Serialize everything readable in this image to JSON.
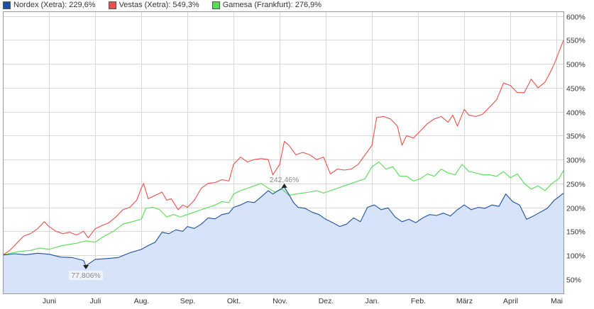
{
  "legend": {
    "items": [
      {
        "label": "Nordex (Xetra): 229,6%",
        "color": "#1f4fa0",
        "name": "nordex"
      },
      {
        "label": "Vestas (Xetra): 549,3%",
        "color": "#e8504a",
        "name": "vestas"
      },
      {
        "label": "Gamesa (Frankfurt): 276,9%",
        "color": "#55dd55",
        "name": "gamesa"
      }
    ]
  },
  "annotations": {
    "high_label": "242,46%",
    "low_label": "77,806%"
  },
  "colors": {
    "nordex_line": "#1f4fa0",
    "nordex_fill": "#d6e3f8",
    "vestas_line": "#e8504a",
    "gamesa_line": "#55dd55",
    "grid": "#d8d8d8",
    "frame": "#999999"
  },
  "chart_data": {
    "type": "line",
    "title": "",
    "xlabel": "",
    "ylabel": "",
    "ylim": [
      20,
      610
    ],
    "y_ticks": [
      50,
      100,
      150,
      200,
      250,
      300,
      350,
      400,
      450,
      500,
      550,
      600
    ],
    "y_tick_labels": [
      "50%",
      "100%",
      "150%",
      "200%",
      "250%",
      "300%",
      "350%",
      "400%",
      "450%",
      "500%",
      "550%",
      "600%"
    ],
    "x_range": [
      0,
      12.15
    ],
    "x_ticks": [
      1,
      2,
      3,
      4,
      5,
      6,
      7,
      8,
      9,
      10,
      11,
      12
    ],
    "x_tick_labels": [
      "Juni",
      "Juli",
      "Aug.",
      "Sep.",
      "Okt.",
      "Nov.",
      "Dez.",
      "Jan.",
      "Feb.",
      "März",
      "April",
      "Mai"
    ],
    "grid": true,
    "legend_position": "top",
    "series": [
      {
        "name": "Nordex (Xetra): 229,6%",
        "area": true,
        "points": [
          [
            0.0,
            100
          ],
          [
            0.25,
            103
          ],
          [
            0.5,
            101
          ],
          [
            0.75,
            104
          ],
          [
            1.0,
            102
          ],
          [
            1.25,
            96
          ],
          [
            1.5,
            95
          ],
          [
            1.75,
            89
          ],
          [
            1.8,
            77.8
          ],
          [
            2.0,
            91
          ],
          [
            2.25,
            93
          ],
          [
            2.5,
            95
          ],
          [
            2.75,
            105
          ],
          [
            3.0,
            112
          ],
          [
            3.15,
            120
          ],
          [
            3.3,
            127
          ],
          [
            3.45,
            148
          ],
          [
            3.6,
            145
          ],
          [
            3.75,
            153
          ],
          [
            3.9,
            150
          ],
          [
            4.0,
            160
          ],
          [
            4.15,
            156
          ],
          [
            4.3,
            165
          ],
          [
            4.45,
            178
          ],
          [
            4.6,
            176
          ],
          [
            4.75,
            185
          ],
          [
            4.9,
            188
          ],
          [
            5.0,
            200
          ],
          [
            5.15,
            205
          ],
          [
            5.3,
            212
          ],
          [
            5.45,
            210
          ],
          [
            5.6,
            222
          ],
          [
            5.75,
            235
          ],
          [
            5.85,
            228
          ],
          [
            6.0,
            237
          ],
          [
            6.1,
            242.5
          ],
          [
            6.2,
            227
          ],
          [
            6.3,
            210
          ],
          [
            6.4,
            200
          ],
          [
            6.55,
            198
          ],
          [
            6.7,
            190
          ],
          [
            6.85,
            185
          ],
          [
            7.0,
            175
          ],
          [
            7.15,
            168
          ],
          [
            7.3,
            160
          ],
          [
            7.45,
            165
          ],
          [
            7.6,
            178
          ],
          [
            7.75,
            170
          ],
          [
            7.9,
            200
          ],
          [
            8.05,
            205
          ],
          [
            8.2,
            195
          ],
          [
            8.35,
            199
          ],
          [
            8.5,
            180
          ],
          [
            8.65,
            170
          ],
          [
            8.8,
            175
          ],
          [
            8.95,
            168
          ],
          [
            9.1,
            178
          ],
          [
            9.25,
            185
          ],
          [
            9.4,
            183
          ],
          [
            9.55,
            188
          ],
          [
            9.7,
            182
          ],
          [
            9.85,
            195
          ],
          [
            10.0,
            205
          ],
          [
            10.15,
            195
          ],
          [
            10.3,
            200
          ],
          [
            10.45,
            198
          ],
          [
            10.6,
            205
          ],
          [
            10.75,
            202
          ],
          [
            10.9,
            228
          ],
          [
            11.05,
            212
          ],
          [
            11.2,
            205
          ],
          [
            11.35,
            175
          ],
          [
            11.5,
            182
          ],
          [
            11.65,
            190
          ],
          [
            11.8,
            198
          ],
          [
            11.95,
            215
          ],
          [
            12.05,
            222
          ],
          [
            12.15,
            229.6
          ]
        ]
      },
      {
        "name": "Vestas (Xetra): 549,3%",
        "area": false,
        "points": [
          [
            0.0,
            100
          ],
          [
            0.15,
            110
          ],
          [
            0.3,
            125
          ],
          [
            0.45,
            140
          ],
          [
            0.6,
            145
          ],
          [
            0.75,
            155
          ],
          [
            0.9,
            170
          ],
          [
            1.0,
            160
          ],
          [
            1.15,
            150
          ],
          [
            1.3,
            145
          ],
          [
            1.45,
            148
          ],
          [
            1.6,
            142
          ],
          [
            1.75,
            150
          ],
          [
            1.85,
            136
          ],
          [
            2.0,
            155
          ],
          [
            2.15,
            162
          ],
          [
            2.3,
            168
          ],
          [
            2.45,
            180
          ],
          [
            2.6,
            195
          ],
          [
            2.75,
            200
          ],
          [
            2.9,
            215
          ],
          [
            3.0,
            240
          ],
          [
            3.05,
            250
          ],
          [
            3.15,
            218
          ],
          [
            3.3,
            225
          ],
          [
            3.45,
            232
          ],
          [
            3.55,
            215
          ],
          [
            3.65,
            218
          ],
          [
            3.8,
            195
          ],
          [
            3.9,
            205
          ],
          [
            4.0,
            200
          ],
          [
            4.15,
            215
          ],
          [
            4.3,
            240
          ],
          [
            4.45,
            250
          ],
          [
            4.6,
            252
          ],
          [
            4.75,
            258
          ],
          [
            4.9,
            255
          ],
          [
            5.0,
            290
          ],
          [
            5.15,
            305
          ],
          [
            5.3,
            295
          ],
          [
            5.45,
            300
          ],
          [
            5.6,
            302
          ],
          [
            5.75,
            300
          ],
          [
            5.85,
            268
          ],
          [
            6.0,
            290
          ],
          [
            6.1,
            338
          ],
          [
            6.2,
            330
          ],
          [
            6.35,
            310
          ],
          [
            6.5,
            315
          ],
          [
            6.65,
            310
          ],
          [
            6.8,
            300
          ],
          [
            6.95,
            305
          ],
          [
            7.1,
            270
          ],
          [
            7.25,
            280
          ],
          [
            7.4,
            278
          ],
          [
            7.55,
            280
          ],
          [
            7.7,
            290
          ],
          [
            7.85,
            310
          ],
          [
            8.0,
            330
          ],
          [
            8.1,
            388
          ],
          [
            8.25,
            390
          ],
          [
            8.4,
            385
          ],
          [
            8.55,
            370
          ],
          [
            8.65,
            330
          ],
          [
            8.75,
            350
          ],
          [
            8.9,
            345
          ],
          [
            9.05,
            360
          ],
          [
            9.2,
            375
          ],
          [
            9.35,
            385
          ],
          [
            9.5,
            390
          ],
          [
            9.65,
            378
          ],
          [
            9.75,
            393
          ],
          [
            9.85,
            370
          ],
          [
            10.0,
            405
          ],
          [
            10.1,
            393
          ],
          [
            10.25,
            390
          ],
          [
            10.4,
            395
          ],
          [
            10.55,
            410
          ],
          [
            10.7,
            425
          ],
          [
            10.85,
            460
          ],
          [
            11.0,
            455
          ],
          [
            11.15,
            440
          ],
          [
            11.3,
            440
          ],
          [
            11.45,
            468
          ],
          [
            11.6,
            450
          ],
          [
            11.75,
            462
          ],
          [
            11.85,
            480
          ],
          [
            11.95,
            500
          ],
          [
            12.05,
            525
          ],
          [
            12.15,
            549.3
          ]
        ]
      },
      {
        "name": "Gamesa (Frankfurt): 276,9%",
        "area": false,
        "points": [
          [
            0.0,
            100
          ],
          [
            0.2,
            105
          ],
          [
            0.4,
            108
          ],
          [
            0.6,
            110
          ],
          [
            0.8,
            115
          ],
          [
            1.0,
            112
          ],
          [
            1.2,
            118
          ],
          [
            1.4,
            122
          ],
          [
            1.6,
            125
          ],
          [
            1.8,
            130
          ],
          [
            2.0,
            127
          ],
          [
            2.2,
            140
          ],
          [
            2.4,
            150
          ],
          [
            2.6,
            165
          ],
          [
            2.8,
            170
          ],
          [
            3.0,
            175
          ],
          [
            3.1,
            198
          ],
          [
            3.25,
            200
          ],
          [
            3.4,
            195
          ],
          [
            3.55,
            180
          ],
          [
            3.7,
            185
          ],
          [
            3.85,
            180
          ],
          [
            4.0,
            185
          ],
          [
            4.15,
            190
          ],
          [
            4.3,
            195
          ],
          [
            4.45,
            200
          ],
          [
            4.6,
            205
          ],
          [
            4.75,
            212
          ],
          [
            4.9,
            210
          ],
          [
            5.0,
            228
          ],
          [
            5.15,
            235
          ],
          [
            5.3,
            240
          ],
          [
            5.45,
            245
          ],
          [
            5.6,
            250
          ],
          [
            5.75,
            240
          ],
          [
            5.9,
            232
          ],
          [
            6.05,
            238
          ],
          [
            6.2,
            225
          ],
          [
            6.35,
            228
          ],
          [
            6.5,
            230
          ],
          [
            6.65,
            232
          ],
          [
            6.8,
            235
          ],
          [
            6.95,
            230
          ],
          [
            7.1,
            235
          ],
          [
            7.25,
            240
          ],
          [
            7.4,
            245
          ],
          [
            7.55,
            250
          ],
          [
            7.7,
            255
          ],
          [
            7.85,
            260
          ],
          [
            8.0,
            285
          ],
          [
            8.15,
            295
          ],
          [
            8.3,
            280
          ],
          [
            8.45,
            285
          ],
          [
            8.6,
            265
          ],
          [
            8.75,
            265
          ],
          [
            8.9,
            255
          ],
          [
            9.05,
            260
          ],
          [
            9.2,
            270
          ],
          [
            9.35,
            265
          ],
          [
            9.5,
            280
          ],
          [
            9.65,
            272
          ],
          [
            9.8,
            268
          ],
          [
            9.95,
            290
          ],
          [
            10.1,
            275
          ],
          [
            10.25,
            272
          ],
          [
            10.4,
            268
          ],
          [
            10.55,
            268
          ],
          [
            10.7,
            265
          ],
          [
            10.85,
            275
          ],
          [
            11.0,
            262
          ],
          [
            11.15,
            270
          ],
          [
            11.3,
            250
          ],
          [
            11.45,
            238
          ],
          [
            11.6,
            245
          ],
          [
            11.75,
            235
          ],
          [
            11.9,
            250
          ],
          [
            12.05,
            260
          ],
          [
            12.15,
            276.9
          ]
        ]
      }
    ],
    "annotations": [
      {
        "text": "242,46%",
        "x": 6.1,
        "y": 242.5
      },
      {
        "text": "77,806%",
        "x": 1.8,
        "y": 77.8
      }
    ]
  }
}
